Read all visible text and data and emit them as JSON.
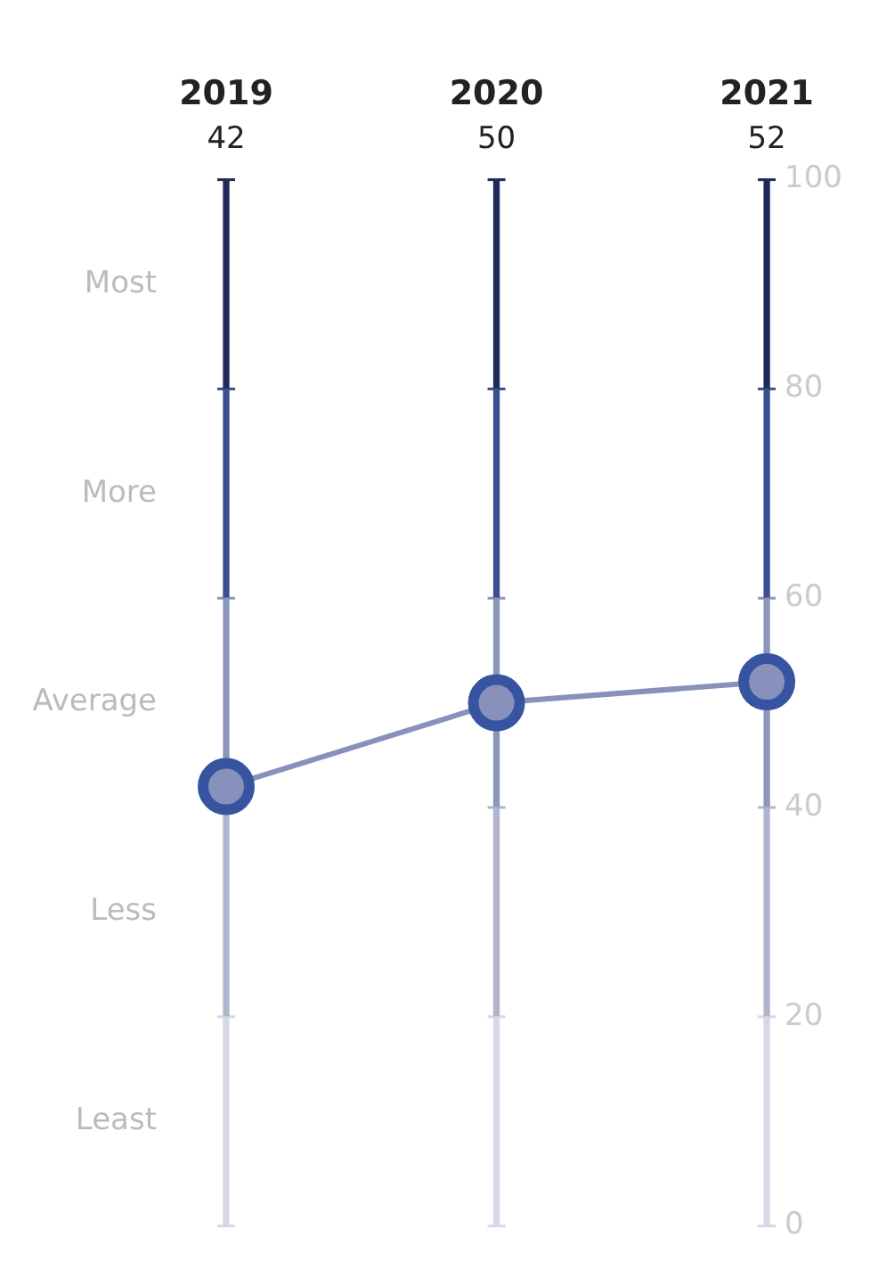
{
  "chart_data": {
    "type": "line",
    "categories": [
      "2019",
      "2020",
      "2021"
    ],
    "stacked": true,
    "series": [
      {
        "type": "bar",
        "color": "#d5d8e6",
        "values": [
          20,
          20,
          20
        ]
      },
      {
        "type": "bar",
        "color": "#b0b5cc",
        "values": [
          20,
          20,
          20
        ]
      },
      {
        "type": "bar",
        "color": "#8c96bd",
        "values": [
          20,
          20,
          20
        ]
      },
      {
        "type": "bar",
        "color": "#3a4f8f",
        "values": [
          20,
          20,
          20
        ]
      },
      {
        "type": "bar",
        "color": "#1f2a5a",
        "values": [
          20,
          20,
          20
        ]
      },
      {
        "color": "#8891bb",
        "values": [
          42,
          50,
          52
        ]
      }
    ],
    "ylim": [
      0,
      100
    ],
    "yticks": [
      0,
      20,
      40,
      60,
      80,
      100
    ],
    "annotations": [
      "42",
      "50",
      "52",
      "Most",
      "More",
      "Average",
      "Less",
      "Least"
    ],
    "marker": "circle",
    "legend": false,
    "grid": false
  }
}
